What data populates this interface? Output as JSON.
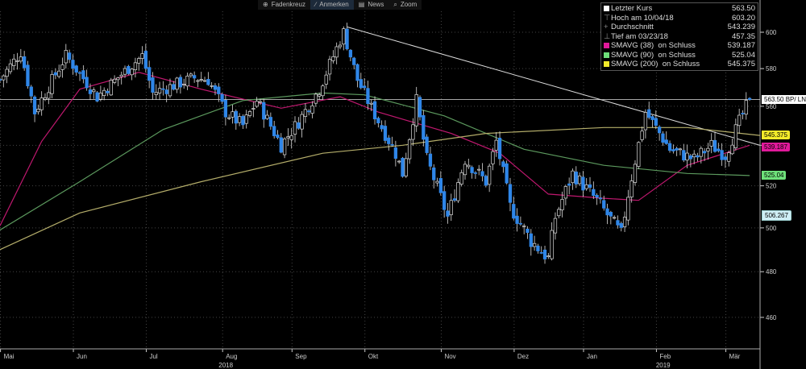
{
  "toolbar": {
    "items": [
      {
        "icon": "crosshair-icon",
        "label": "Fadenkreuz"
      },
      {
        "icon": "pencil-icon",
        "label": "Anmerken"
      },
      {
        "icon": "news-icon",
        "label": "News"
      },
      {
        "icon": "zoom-icon",
        "label": "Zoom"
      }
    ]
  },
  "legend": {
    "rows": [
      {
        "label": "Letzter Kurs",
        "value": "563.50",
        "color": "#ffffff"
      },
      {
        "label": "Hoch am 10/04/18",
        "value": "603.20",
        "color": ""
      },
      {
        "label": "Durchschnitt",
        "value": "543.239",
        "color": ""
      },
      {
        "label": "Tief am 03/23/18",
        "value": "457.35",
        "color": ""
      },
      {
        "label": "SMAVG (38)  on Schluss",
        "value": "539.187",
        "color": "#e0199a"
      },
      {
        "label": "SMAVG (90)  on Schluss",
        "value": "525.04",
        "color": "#6ee07a"
      },
      {
        "label": "SMAVG (200)  on Schluss",
        "value": "545.375",
        "color": "#f2ea2a"
      }
    ]
  },
  "tags": [
    {
      "text": "563.50 BP/ LN",
      "value": 563.5,
      "bg": "#ffffff",
      "fg": "#000"
    },
    {
      "text": "545.375",
      "value": 545.375,
      "bg": "#f2ea2a",
      "fg": "#000"
    },
    {
      "text": "539.187",
      "value": 539.187,
      "bg": "#e0199a",
      "fg": "#000"
    },
    {
      "text": "525.04",
      "value": 525.04,
      "bg": "#6ee07a",
      "fg": "#000"
    },
    {
      "text": "506.267",
      "value": 506.267,
      "bg": "#cfeef5",
      "fg": "#000"
    }
  ],
  "chart_data": {
    "type": "candlestick",
    "scale": "log",
    "ylim": [
      455,
      612
    ],
    "xlim": [
      0,
      219
    ],
    "yticks": [
      460,
      480,
      500,
      520,
      540,
      560,
      580,
      600
    ],
    "ytick_labels": [
      "460",
      "480",
      "500",
      "520",
      "",
      "560",
      "580",
      "600"
    ],
    "months": [
      {
        "label": "Mai",
        "x": 2
      },
      {
        "label": "Jun",
        "x": 23
      },
      {
        "label": "Jul",
        "x": 44
      },
      {
        "label": "Aug",
        "x": 66
      },
      {
        "label": "Sep",
        "x": 86
      },
      {
        "label": "Okt",
        "x": 107
      },
      {
        "label": "Nov",
        "x": 129
      },
      {
        "label": "Dez",
        "x": 150
      },
      {
        "label": "Jan",
        "x": 170
      },
      {
        "label": "Feb",
        "x": 191
      },
      {
        "label": "Mär",
        "x": 211
      }
    ],
    "years": [
      {
        "label": "2018",
        "x": 63
      },
      {
        "label": "2019",
        "x": 189
      }
    ],
    "close_path": {
      "x": [
        0,
        6,
        10,
        19,
        28,
        41,
        44,
        56,
        60,
        65,
        70,
        74,
        81,
        86,
        92,
        99,
        103,
        107,
        114,
        116,
        120,
        123,
        129,
        134,
        140,
        143,
        147,
        153,
        158,
        160,
        165,
        172,
        179,
        181,
        186,
        193,
        200,
        205,
        209,
        213,
        216
      ],
      "y": [
        574,
        589,
        557,
        587,
        565,
        587,
        567,
        575,
        574,
        557,
        550,
        563,
        540,
        552,
        569,
        600,
        574,
        559,
        536,
        526,
        563,
        533,
        505,
        533,
        522,
        542,
        510,
        494,
        486,
        505,
        526,
        513,
        497,
        516,
        557,
        538,
        533,
        540,
        535,
        552,
        563.5
      ]
    },
    "series": [
      {
        "name": "SMAVG (38)",
        "color": "#c0186f",
        "x": [
          0,
          12,
          23,
          40,
          58,
          81,
          98,
          109,
          130,
          144,
          158,
          174,
          184,
          198,
          216
        ],
        "y": [
          501,
          542,
          569,
          578,
          569,
          559,
          565,
          557,
          546,
          536,
          516,
          514,
          513,
          530,
          540
        ]
      },
      {
        "name": "SMAVG (90)",
        "color": "#5c9a5e",
        "x": [
          0,
          23,
          47,
          70,
          93,
          105,
          128,
          151,
          174,
          198,
          216
        ],
        "y": [
          499,
          522,
          548,
          563,
          567,
          566,
          555,
          538,
          530,
          526,
          525
        ]
      },
      {
        "name": "SMAVG (200)",
        "color": "#b4ad6a",
        "x": [
          0,
          23,
          58,
          93,
          116,
          140,
          174,
          198,
          219
        ],
        "y": [
          490,
          507,
          522,
          536,
          540,
          546,
          549,
          549,
          545
        ]
      }
    ],
    "trendline": {
      "x": [
        100,
        219
      ],
      "y": [
        603,
        540
      ]
    },
    "last_price_line": 563.5
  }
}
